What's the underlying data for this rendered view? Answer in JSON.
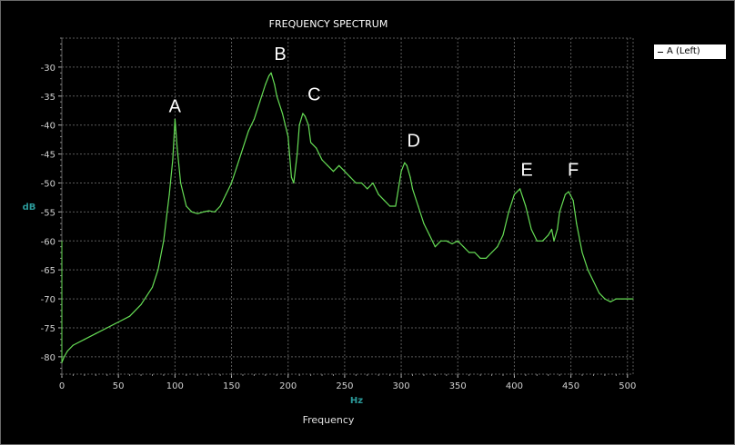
{
  "chart_data": {
    "type": "line",
    "title": "FREQUENCY SPECTRUM",
    "xlabel": "Frequency",
    "x_unit": "Hz",
    "ylabel": "dB",
    "xlim": [
      0,
      505
    ],
    "ylim": [
      -83,
      -25
    ],
    "x_ticks": [
      0,
      50,
      100,
      150,
      200,
      250,
      300,
      350,
      400,
      450,
      500
    ],
    "y_ticks": [
      -30,
      -35,
      -40,
      -45,
      -50,
      -55,
      -60,
      -65,
      -70,
      -75,
      -80
    ],
    "grid": true,
    "legend": "top-right, outside plot",
    "series": [
      {
        "name": "A (Left)",
        "color": "#66dd55",
        "x": [
          0,
          2,
          5,
          10,
          20,
          30,
          40,
          50,
          60,
          70,
          80,
          85,
          90,
          95,
          98,
          100,
          102,
          105,
          110,
          115,
          120,
          125,
          130,
          135,
          140,
          145,
          150,
          155,
          160,
          165,
          170,
          175,
          180,
          183,
          185,
          188,
          190,
          195,
          200,
          203,
          205,
          208,
          210,
          213,
          215,
          218,
          220,
          225,
          230,
          235,
          240,
          245,
          250,
          255,
          260,
          265,
          270,
          275,
          280,
          285,
          290,
          295,
          300,
          303,
          305,
          308,
          310,
          315,
          320,
          325,
          330,
          335,
          340,
          345,
          350,
          355,
          360,
          365,
          370,
          375,
          380,
          385,
          390,
          395,
          400,
          405,
          410,
          415,
          420,
          425,
          430,
          433,
          435,
          438,
          440,
          445,
          448,
          452,
          455,
          460,
          465,
          470,
          475,
          480,
          485,
          490,
          495,
          500,
          505
        ],
        "values": [
          -81,
          -80,
          -79,
          -78,
          -77,
          -76,
          -75,
          -74,
          -73,
          -71,
          -68,
          -65,
          -60,
          -52,
          -46,
          -39,
          -44,
          -50,
          -54,
          -55,
          -55.3,
          -55,
          -54.8,
          -55,
          -54,
          -52,
          -50,
          -47,
          -44,
          -41,
          -39,
          -36,
          -33,
          -31.5,
          -31,
          -33,
          -35,
          -38,
          -42,
          -49,
          -50,
          -45,
          -40,
          -38,
          -38.5,
          -40,
          -43,
          -44,
          -46,
          -47,
          -48,
          -47,
          -48,
          -49,
          -50,
          -50,
          -51,
          -50,
          -52,
          -53,
          -54,
          -54,
          -48,
          -46.5,
          -47,
          -49,
          -51,
          -54,
          -57,
          -59,
          -61,
          -60,
          -60,
          -60.5,
          -60,
          -61,
          -62,
          -62,
          -63,
          -63,
          -62,
          -61,
          -59,
          -55,
          -52,
          -51,
          -54,
          -58,
          -60,
          -60,
          -59,
          -58,
          -60,
          -58,
          -55,
          -52,
          -51.5,
          -53,
          -57,
          -62,
          -65,
          -67,
          -69,
          -70,
          -70.5,
          -70,
          -70,
          -70,
          -70
        ]
      }
    ],
    "annotations": [
      {
        "text": "A",
        "x": 100,
        "y": -39
      },
      {
        "text": "B",
        "x": 193,
        "y": -30
      },
      {
        "text": "C",
        "x": 223,
        "y": -37
      },
      {
        "text": "D",
        "x": 311,
        "y": -45
      },
      {
        "text": "E",
        "x": 411,
        "y": -50
      },
      {
        "text": "F",
        "x": 452,
        "y": -50
      }
    ]
  }
}
